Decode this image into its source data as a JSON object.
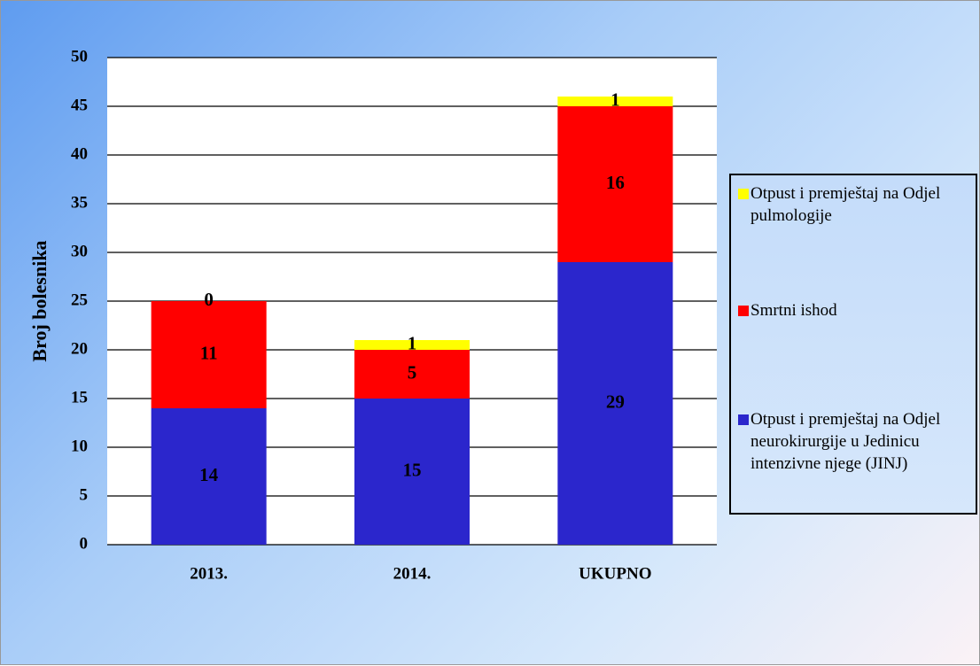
{
  "chart_data": {
    "type": "stacked_bar",
    "y_label": "Broj bolesnika",
    "categories": [
      "2013.",
      "2014.",
      "UKUPNO"
    ],
    "series": [
      {
        "name": "Otpust i premještaj na Odjel neurokirurgije u Jedinicu intenzivne njege (JINJ)",
        "color": "#2b26cc",
        "values": [
          14,
          15,
          29
        ]
      },
      {
        "name": "Smrtni ishod",
        "color": "#ff0000",
        "values": [
          11,
          5,
          16
        ]
      },
      {
        "name": "Otpust i premještaj na Odjel pulmologije",
        "color": "#ffff00",
        "values": [
          0,
          1,
          1
        ]
      }
    ],
    "ylim": [
      0,
      50
    ],
    "yticks": [
      0,
      5,
      10,
      15,
      20,
      25,
      30,
      35,
      40,
      45,
      50
    ],
    "grid": true
  }
}
